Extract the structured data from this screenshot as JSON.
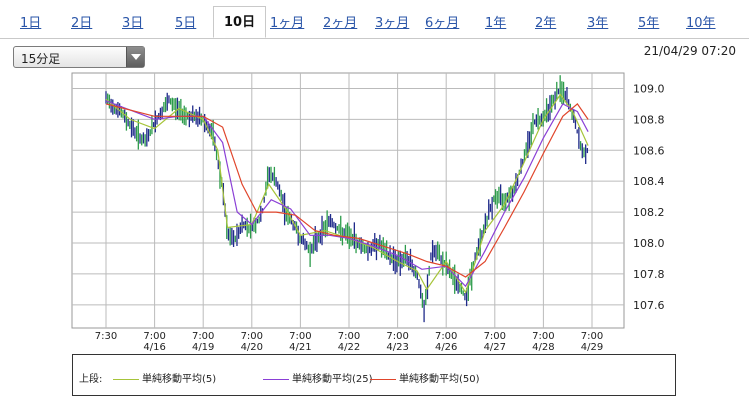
{
  "tabs": [
    {
      "label": "1日",
      "active": false
    },
    {
      "label": "2日",
      "active": false
    },
    {
      "label": "3日",
      "active": false
    },
    {
      "label": "5日",
      "active": false
    },
    {
      "label": "10日",
      "active": true
    },
    {
      "label": "1ヶ月",
      "active": false
    },
    {
      "label": "2ヶ月",
      "active": false
    },
    {
      "label": "3ヶ月",
      "active": false
    },
    {
      "label": "6ヶ月",
      "active": false
    },
    {
      "label": "1年",
      "active": false
    },
    {
      "label": "2年",
      "active": false
    },
    {
      "label": "3年",
      "active": false
    },
    {
      "label": "5年",
      "active": false
    },
    {
      "label": "10年",
      "active": false
    }
  ],
  "interval_select": {
    "value": "15分足"
  },
  "timestamp": "21/04/29 07:20",
  "legend": {
    "label": "上段:",
    "items": [
      {
        "name": "単純移動平均(5)",
        "color": "#a6c43a"
      },
      {
        "name": "単純移動平均(25)",
        "color": "#8a3fd6"
      },
      {
        "name": "単純移動平均(50)",
        "color": "#e0452b"
      }
    ]
  },
  "chart_data": {
    "type": "line",
    "ylim": [
      107.45,
      109.1
    ],
    "y_ticks": [
      107.6,
      107.8,
      108.0,
      108.2,
      108.4,
      108.6,
      108.8,
      109.0
    ],
    "y_tick_labels": [
      "107.6",
      "107.8",
      "108.0",
      "108.2",
      "108.4",
      "108.6",
      "108.8",
      "109.0"
    ],
    "x_ticks": [
      {
        "line1": "7:30",
        "line2": ""
      },
      {
        "line1": "7:00",
        "line2": "4/16"
      },
      {
        "line1": "7:00",
        "line2": "4/19"
      },
      {
        "line1": "7:00",
        "line2": "4/20"
      },
      {
        "line1": "7:00",
        "line2": "4/21"
      },
      {
        "line1": "7:00",
        "line2": "4/22"
      },
      {
        "line1": "7:00",
        "line2": "4/23"
      },
      {
        "line1": "7:00",
        "line2": "4/26"
      },
      {
        "line1": "7:00",
        "line2": "4/27"
      },
      {
        "line1": "7:00",
        "line2": "4/28"
      },
      {
        "line1": "7:00",
        "line2": "4/29"
      }
    ],
    "colors": {
      "up": "#2c9b4a",
      "down": "#1f2a8a",
      "grid": "#bbbbbb"
    },
    "price": [
      [
        0,
        108.93
      ],
      [
        0.3,
        108.85
      ],
      [
        0.6,
        108.72
      ],
      [
        0.8,
        108.65
      ],
      [
        1.0,
        108.78
      ],
      [
        1.3,
        108.92
      ],
      [
        1.5,
        108.86
      ],
      [
        1.7,
        108.82
      ],
      [
        2.0,
        108.8
      ],
      [
        2.2,
        108.7
      ],
      [
        2.4,
        108.35
      ],
      [
        2.5,
        108.05
      ],
      [
        2.65,
        108.02
      ],
      [
        2.8,
        108.12
      ],
      [
        3.0,
        108.1
      ],
      [
        3.2,
        108.17
      ],
      [
        3.35,
        108.46
      ],
      [
        3.5,
        108.4
      ],
      [
        3.7,
        108.2
      ],
      [
        3.9,
        108.1
      ],
      [
        4.0,
        108.03
      ],
      [
        4.2,
        107.95
      ],
      [
        4.4,
        108.05
      ],
      [
        4.6,
        108.15
      ],
      [
        4.8,
        108.08
      ],
      [
        5.0,
        108.04
      ],
      [
        5.2,
        108.0
      ],
      [
        5.4,
        107.95
      ],
      [
        5.6,
        108.0
      ],
      [
        5.8,
        107.92
      ],
      [
        6.0,
        107.88
      ],
      [
        6.2,
        107.9
      ],
      [
        6.4,
        107.8
      ],
      [
        6.55,
        107.55
      ],
      [
        6.7,
        107.95
      ],
      [
        6.85,
        107.92
      ],
      [
        7.0,
        107.85
      ],
      [
        7.2,
        107.75
      ],
      [
        7.4,
        107.65
      ],
      [
        7.6,
        107.9
      ],
      [
        7.8,
        108.12
      ],
      [
        8.0,
        108.3
      ],
      [
        8.2,
        108.28
      ],
      [
        8.4,
        108.35
      ],
      [
        8.6,
        108.55
      ],
      [
        8.8,
        108.78
      ],
      [
        9.0,
        108.82
      ],
      [
        9.2,
        108.92
      ],
      [
        9.35,
        109.0
      ],
      [
        9.5,
        108.92
      ],
      [
        9.65,
        108.78
      ],
      [
        9.8,
        108.58
      ],
      [
        9.92,
        108.6
      ]
    ],
    "series": [
      {
        "name": "単純移動平均(5)",
        "values": [
          [
            0,
            108.93
          ],
          [
            0.5,
            108.8
          ],
          [
            1.0,
            108.74
          ],
          [
            1.5,
            108.87
          ],
          [
            2.0,
            108.8
          ],
          [
            2.3,
            108.6
          ],
          [
            2.5,
            108.1
          ],
          [
            3.0,
            108.12
          ],
          [
            3.35,
            108.38
          ],
          [
            3.7,
            108.22
          ],
          [
            4.0,
            108.05
          ],
          [
            4.5,
            108.08
          ],
          [
            5.0,
            108.03
          ],
          [
            5.5,
            107.97
          ],
          [
            6.0,
            107.88
          ],
          [
            6.4,
            107.82
          ],
          [
            6.6,
            107.7
          ],
          [
            7.0,
            107.88
          ],
          [
            7.4,
            107.68
          ],
          [
            7.8,
            108.08
          ],
          [
            8.2,
            108.25
          ],
          [
            8.6,
            108.52
          ],
          [
            9.0,
            108.8
          ],
          [
            9.35,
            108.96
          ],
          [
            9.6,
            108.85
          ],
          [
            9.92,
            108.63
          ]
        ]
      },
      {
        "name": "単純移動平均(25)",
        "values": [
          [
            0,
            108.92
          ],
          [
            0.5,
            108.86
          ],
          [
            1.0,
            108.8
          ],
          [
            1.5,
            108.82
          ],
          [
            2.0,
            108.82
          ],
          [
            2.4,
            108.65
          ],
          [
            2.7,
            108.2
          ],
          [
            3.0,
            108.12
          ],
          [
            3.4,
            108.28
          ],
          [
            3.8,
            108.22
          ],
          [
            4.2,
            108.05
          ],
          [
            4.6,
            108.05
          ],
          [
            5.0,
            108.03
          ],
          [
            5.5,
            107.98
          ],
          [
            6.0,
            107.92
          ],
          [
            6.5,
            107.83
          ],
          [
            7.0,
            107.85
          ],
          [
            7.4,
            107.72
          ],
          [
            7.8,
            107.95
          ],
          [
            8.2,
            108.2
          ],
          [
            8.6,
            108.42
          ],
          [
            9.0,
            108.68
          ],
          [
            9.4,
            108.9
          ],
          [
            9.7,
            108.85
          ],
          [
            9.92,
            108.72
          ]
        ]
      },
      {
        "name": "単純移動平均(50)",
        "values": [
          [
            0,
            108.9
          ],
          [
            0.5,
            108.86
          ],
          [
            1.0,
            108.82
          ],
          [
            1.5,
            108.82
          ],
          [
            2.0,
            108.82
          ],
          [
            2.4,
            108.75
          ],
          [
            2.8,
            108.38
          ],
          [
            3.1,
            108.2
          ],
          [
            3.5,
            108.2
          ],
          [
            3.9,
            108.18
          ],
          [
            4.3,
            108.08
          ],
          [
            4.7,
            108.05
          ],
          [
            5.2,
            108.03
          ],
          [
            5.7,
            107.98
          ],
          [
            6.2,
            107.93
          ],
          [
            6.6,
            107.88
          ],
          [
            7.0,
            107.85
          ],
          [
            7.4,
            107.78
          ],
          [
            7.8,
            107.88
          ],
          [
            8.2,
            108.1
          ],
          [
            8.6,
            108.33
          ],
          [
            9.0,
            108.58
          ],
          [
            9.4,
            108.82
          ],
          [
            9.7,
            108.9
          ],
          [
            9.92,
            108.8
          ]
        ]
      }
    ]
  }
}
